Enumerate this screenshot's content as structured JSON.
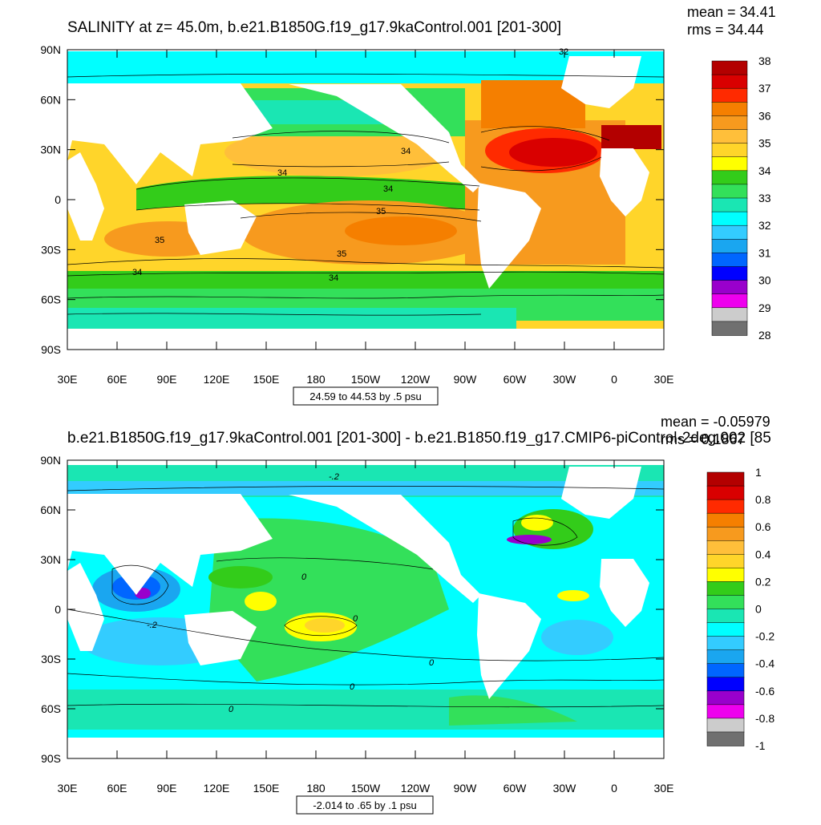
{
  "panels": [
    {
      "id": "salinity",
      "title": "SALINITY at z=  45.0m, b.e21.B1850G.f19_g17.9kaControl.001 [201-300]",
      "stats": [
        "mean = 34.41",
        "rms = 34.44"
      ],
      "info_label": "24.59 to 44.53 by .5 psu",
      "lat_ticks": [
        "90N",
        "60N",
        "30N",
        "0",
        "30S",
        "60S",
        "90S"
      ],
      "lon_ticks": [
        "30E",
        "60E",
        "90E",
        "120E",
        "150E",
        "180",
        "150W",
        "120W",
        "90W",
        "60W",
        "30W",
        "0",
        "30E"
      ],
      "colorbar": {
        "labels": [
          "38",
          "37",
          "36",
          "35",
          "34",
          "33",
          "32",
          "31",
          "30",
          "29",
          "28"
        ],
        "colors": [
          "#b30000",
          "#d90000",
          "#ff2a00",
          "#f57f00",
          "#f79a1e",
          "#ffbf3a",
          "#ffd52a",
          "#ffff00",
          "#33cc1a",
          "#33e05a",
          "#1ae6b3",
          "#00ffff",
          "#33ccff",
          "#1aa6f0",
          "#0066ff",
          "#0000ff",
          "#9900cc",
          "#ee00ee",
          "#cccccc",
          "#707070"
        ]
      },
      "contour_labels": [
        "32",
        "34",
        "34",
        "34",
        "35",
        "35",
        "35",
        "34",
        "34"
      ]
    },
    {
      "id": "difference",
      "title": "b.e21.B1850G.f19_g17.9kaControl.001 [201-300] - b.e21.B1850.f19_g17.CMIP6-piControl-2deg.002 [85",
      "stats": [
        "mean = -0.05979",
        "rms = 0.1867"
      ],
      "info_label": "-2.014 to .65 by .1 psu",
      "lat_ticks": [
        "90N",
        "60N",
        "30N",
        "0",
        "30S",
        "60S",
        "90S"
      ],
      "lon_ticks": [
        "30E",
        "60E",
        "90E",
        "120E",
        "150E",
        "180",
        "150W",
        "120W",
        "90W",
        "60W",
        "30W",
        "0",
        "30E"
      ],
      "colorbar": {
        "labels": [
          "1",
          "0.8",
          "0.6",
          "0.4",
          "0.2",
          "0",
          "-0.2",
          "-0.4",
          "-0.6",
          "-0.8",
          "-1"
        ],
        "colors": [
          "#b30000",
          "#d90000",
          "#ff2a00",
          "#f57f00",
          "#f79a1e",
          "#ffbf3a",
          "#ffd52a",
          "#ffff00",
          "#33cc1a",
          "#33e05a",
          "#1ae6b3",
          "#00ffff",
          "#33ccff",
          "#1aa6f0",
          "#0066ff",
          "#0000ff",
          "#9900cc",
          "#ee00ee",
          "#cccccc",
          "#707070"
        ]
      },
      "contour_labels": [
        "-.2",
        "0",
        "-.2",
        "0",
        "0",
        "0",
        "0"
      ]
    }
  ],
  "chart_data": [
    {
      "type": "heatmap",
      "title": "SALINITY at z=  45.0m, b.e21.B1850G.f19_g17.9kaControl.001 [201-300]",
      "units": "psu",
      "x_range": [
        30,
        390
      ],
      "y_range": [
        -90,
        90
      ],
      "xlabel": "",
      "ylabel": "",
      "levels": [
        28,
        28.5,
        29,
        29.5,
        30,
        30.5,
        31,
        31.5,
        32,
        32.5,
        33,
        33.5,
        34,
        34.5,
        35,
        35.5,
        36,
        36.5,
        37,
        37.5,
        38
      ],
      "mean": 34.41,
      "rms": 34.44,
      "field_summary": "Subtropical maxima 35-37 psu, Atlantic subtropics highest (~37-38); Arctic fresh ~32; Southern Ocean ~34"
    },
    {
      "type": "heatmap",
      "title": "b.e21.B1850G.f19_g17.9kaControl.001 [201-300] - b.e21.B1850.f19_g17.CMIP6-piControl-2deg.002 [85",
      "units": "psu",
      "x_range": [
        30,
        390
      ],
      "y_range": [
        -90,
        90
      ],
      "xlabel": "",
      "ylabel": "",
      "levels": [
        -1,
        -0.9,
        -0.8,
        -0.7,
        -0.6,
        -0.5,
        -0.4,
        -0.3,
        -0.2,
        -0.1,
        0,
        0.1,
        0.2,
        0.3,
        0.4,
        0.5,
        0.6,
        0.7,
        0.8,
        0.9,
        1
      ],
      "mean": -0.05979,
      "rms": 0.1867,
      "field_summary": "Mostly slightly negative (-0.1 to -0.2); Bay of Bengal strongly negative (~-0.6); South Pacific convergence positive (~+0.4)"
    }
  ]
}
